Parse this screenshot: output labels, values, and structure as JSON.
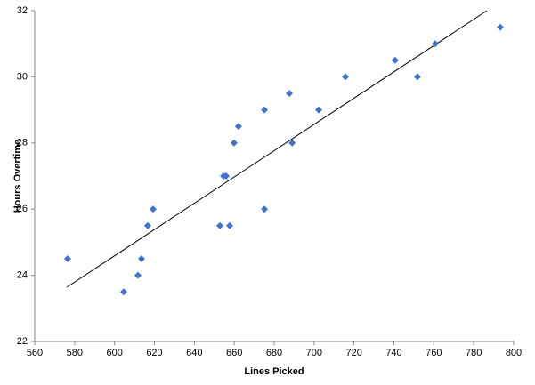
{
  "chart_data": {
    "type": "scatter",
    "x_label": "Lines Picked",
    "y_label": "Hours Overtime",
    "x": [
      576.5,
      604.6,
      611.7,
      613.5,
      616.6,
      619.3,
      652.8,
      654.6,
      655.9,
      657.7,
      659.9,
      662.1,
      675.1,
      675.1,
      687.6,
      689.0,
      702.3,
      715.7,
      740.6,
      751.8,
      760.7,
      793.3
    ],
    "series": [
      {
        "color": "#4472c4",
        "values": [
          24.5,
          23.5,
          24.0,
          24.5,
          25.5,
          26.0,
          25.5,
          27.0,
          27.0,
          25.5,
          28.0,
          28.5,
          29.0,
          26.0,
          29.5,
          28.0,
          29.0,
          30.0,
          30.5,
          30.0,
          31.0,
          31.5
        ]
      }
    ],
    "trendline": {
      "x": [
        576.1,
        786.6
      ],
      "y": [
        23.64,
        32.0
      ],
      "color": "#000000"
    },
    "xlim": [
      560,
      800
    ],
    "xticks": [
      560,
      580,
      600,
      620,
      640,
      660,
      680,
      700,
      720,
      740,
      760,
      780,
      800
    ],
    "ylim": [
      22,
      32
    ],
    "yticks": [
      22,
      24,
      26,
      28,
      30,
      32
    ],
    "grid": false
  }
}
